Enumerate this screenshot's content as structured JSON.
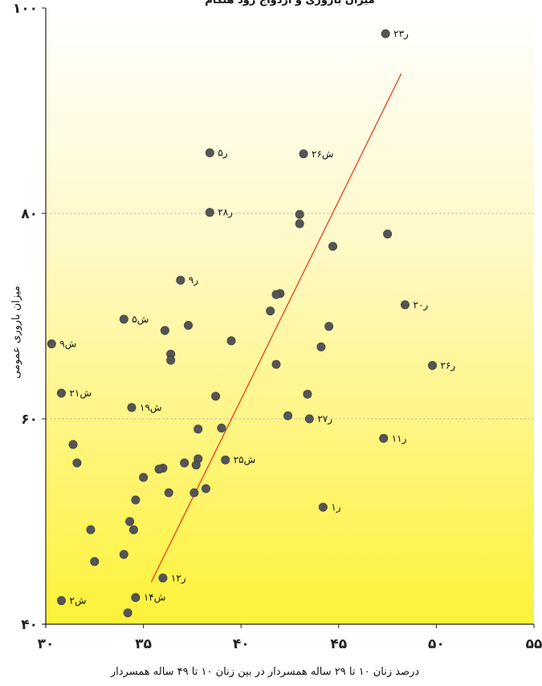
{
  "chart_data": {
    "type": "scatter",
    "title": "میزان باروری و ازدواج زود هنگام",
    "xlabel": "درصد زنان ۱۰ تا ۲۹ ساله همسردار در بین زنان ۱۰ تا ۴۹ ساله همسردار",
    "ylabel": "میزان باروری عمومی",
    "xlim": [
      30,
      55
    ],
    "ylim": [
      40,
      100
    ],
    "x_ticks": [
      30,
      35,
      40,
      45,
      50,
      55
    ],
    "y_ticks": [
      40,
      60,
      80,
      100
    ],
    "x_tick_labels": [
      "۳۰",
      "۳۵",
      "۴۰",
      "۴۵",
      "۵۰",
      "۵۵"
    ],
    "y_tick_labels": [
      "۴۰",
      "۶۰",
      "۸۰",
      "۱۰۰"
    ],
    "grid_y": [
      60,
      80
    ],
    "background_gradient": [
      "#ffffff",
      "#fff9c8",
      "#fdf238"
    ],
    "trend_color": "#e8401c",
    "point_color": "#555555",
    "trend_line": {
      "x": [
        35.4,
        48.2
      ],
      "y": [
        44.1,
        93.6
      ]
    },
    "points": [
      {
        "x": 47.4,
        "y": 97.5,
        "label": "ر۲۳"
      },
      {
        "x": 47.5,
        "y": 78.0
      },
      {
        "x": 48.4,
        "y": 71.1,
        "label": "ر۲۰"
      },
      {
        "x": 49.8,
        "y": 65.2,
        "label": "ر۲۶"
      },
      {
        "x": 47.3,
        "y": 58.1,
        "label": "ر۱۱"
      },
      {
        "x": 44.2,
        "y": 51.4,
        "label": "ر۱"
      },
      {
        "x": 43.2,
        "y": 85.8,
        "label": "ش۲۶"
      },
      {
        "x": 43.0,
        "y": 79.9
      },
      {
        "x": 43.0,
        "y": 79.0
      },
      {
        "x": 44.7,
        "y": 76.8
      },
      {
        "x": 42.0,
        "y": 72.2
      },
      {
        "x": 41.8,
        "y": 72.1
      },
      {
        "x": 41.5,
        "y": 70.5
      },
      {
        "x": 44.5,
        "y": 69.0
      },
      {
        "x": 44.1,
        "y": 67.0
      },
      {
        "x": 41.8,
        "y": 65.3
      },
      {
        "x": 43.4,
        "y": 62.4
      },
      {
        "x": 42.4,
        "y": 60.3
      },
      {
        "x": 43.5,
        "y": 60.0,
        "label": "ر۲۷"
      },
      {
        "x": 38.4,
        "y": 85.9,
        "label": "ر۵"
      },
      {
        "x": 38.4,
        "y": 80.1,
        "label": "ر۲۸"
      },
      {
        "x": 36.9,
        "y": 73.5,
        "label": "ر۹"
      },
      {
        "x": 34.0,
        "y": 69.7,
        "label": "ش۵"
      },
      {
        "x": 37.3,
        "y": 69.1
      },
      {
        "x": 36.1,
        "y": 68.6
      },
      {
        "x": 39.5,
        "y": 67.6
      },
      {
        "x": 36.4,
        "y": 66.3
      },
      {
        "x": 36.4,
        "y": 65.7
      },
      {
        "x": 38.7,
        "y": 62.2
      },
      {
        "x": 34.4,
        "y": 61.1,
        "label": "ش۱۹"
      },
      {
        "x": 39.0,
        "y": 59.1
      },
      {
        "x": 37.8,
        "y": 59.0
      },
      {
        "x": 30.3,
        "y": 67.3,
        "label": "ش۹"
      },
      {
        "x": 30.8,
        "y": 62.5,
        "label": "ش۲۱"
      },
      {
        "x": 31.4,
        "y": 57.5
      },
      {
        "x": 31.6,
        "y": 55.7
      },
      {
        "x": 39.2,
        "y": 56.0,
        "label": "ش۲۵"
      },
      {
        "x": 37.8,
        "y": 56.1
      },
      {
        "x": 37.7,
        "y": 55.5
      },
      {
        "x": 37.1,
        "y": 55.7
      },
      {
        "x": 36.0,
        "y": 55.2
      },
      {
        "x": 35.8,
        "y": 55.1
      },
      {
        "x": 35.0,
        "y": 54.3
      },
      {
        "x": 38.2,
        "y": 53.2
      },
      {
        "x": 36.3,
        "y": 52.8
      },
      {
        "x": 37.6,
        "y": 52.8
      },
      {
        "x": 34.6,
        "y": 52.1
      },
      {
        "x": 34.3,
        "y": 50.0
      },
      {
        "x": 34.5,
        "y": 49.2
      },
      {
        "x": 32.3,
        "y": 49.2
      },
      {
        "x": 34.0,
        "y": 46.8
      },
      {
        "x": 32.5,
        "y": 46.1
      },
      {
        "x": 36.0,
        "y": 44.5,
        "label": "ر۱۲"
      },
      {
        "x": 34.6,
        "y": 42.6,
        "label": "ش۱۴"
      },
      {
        "x": 30.8,
        "y": 42.3,
        "label": "ش۲"
      },
      {
        "x": 34.2,
        "y": 41.1
      }
    ]
  }
}
